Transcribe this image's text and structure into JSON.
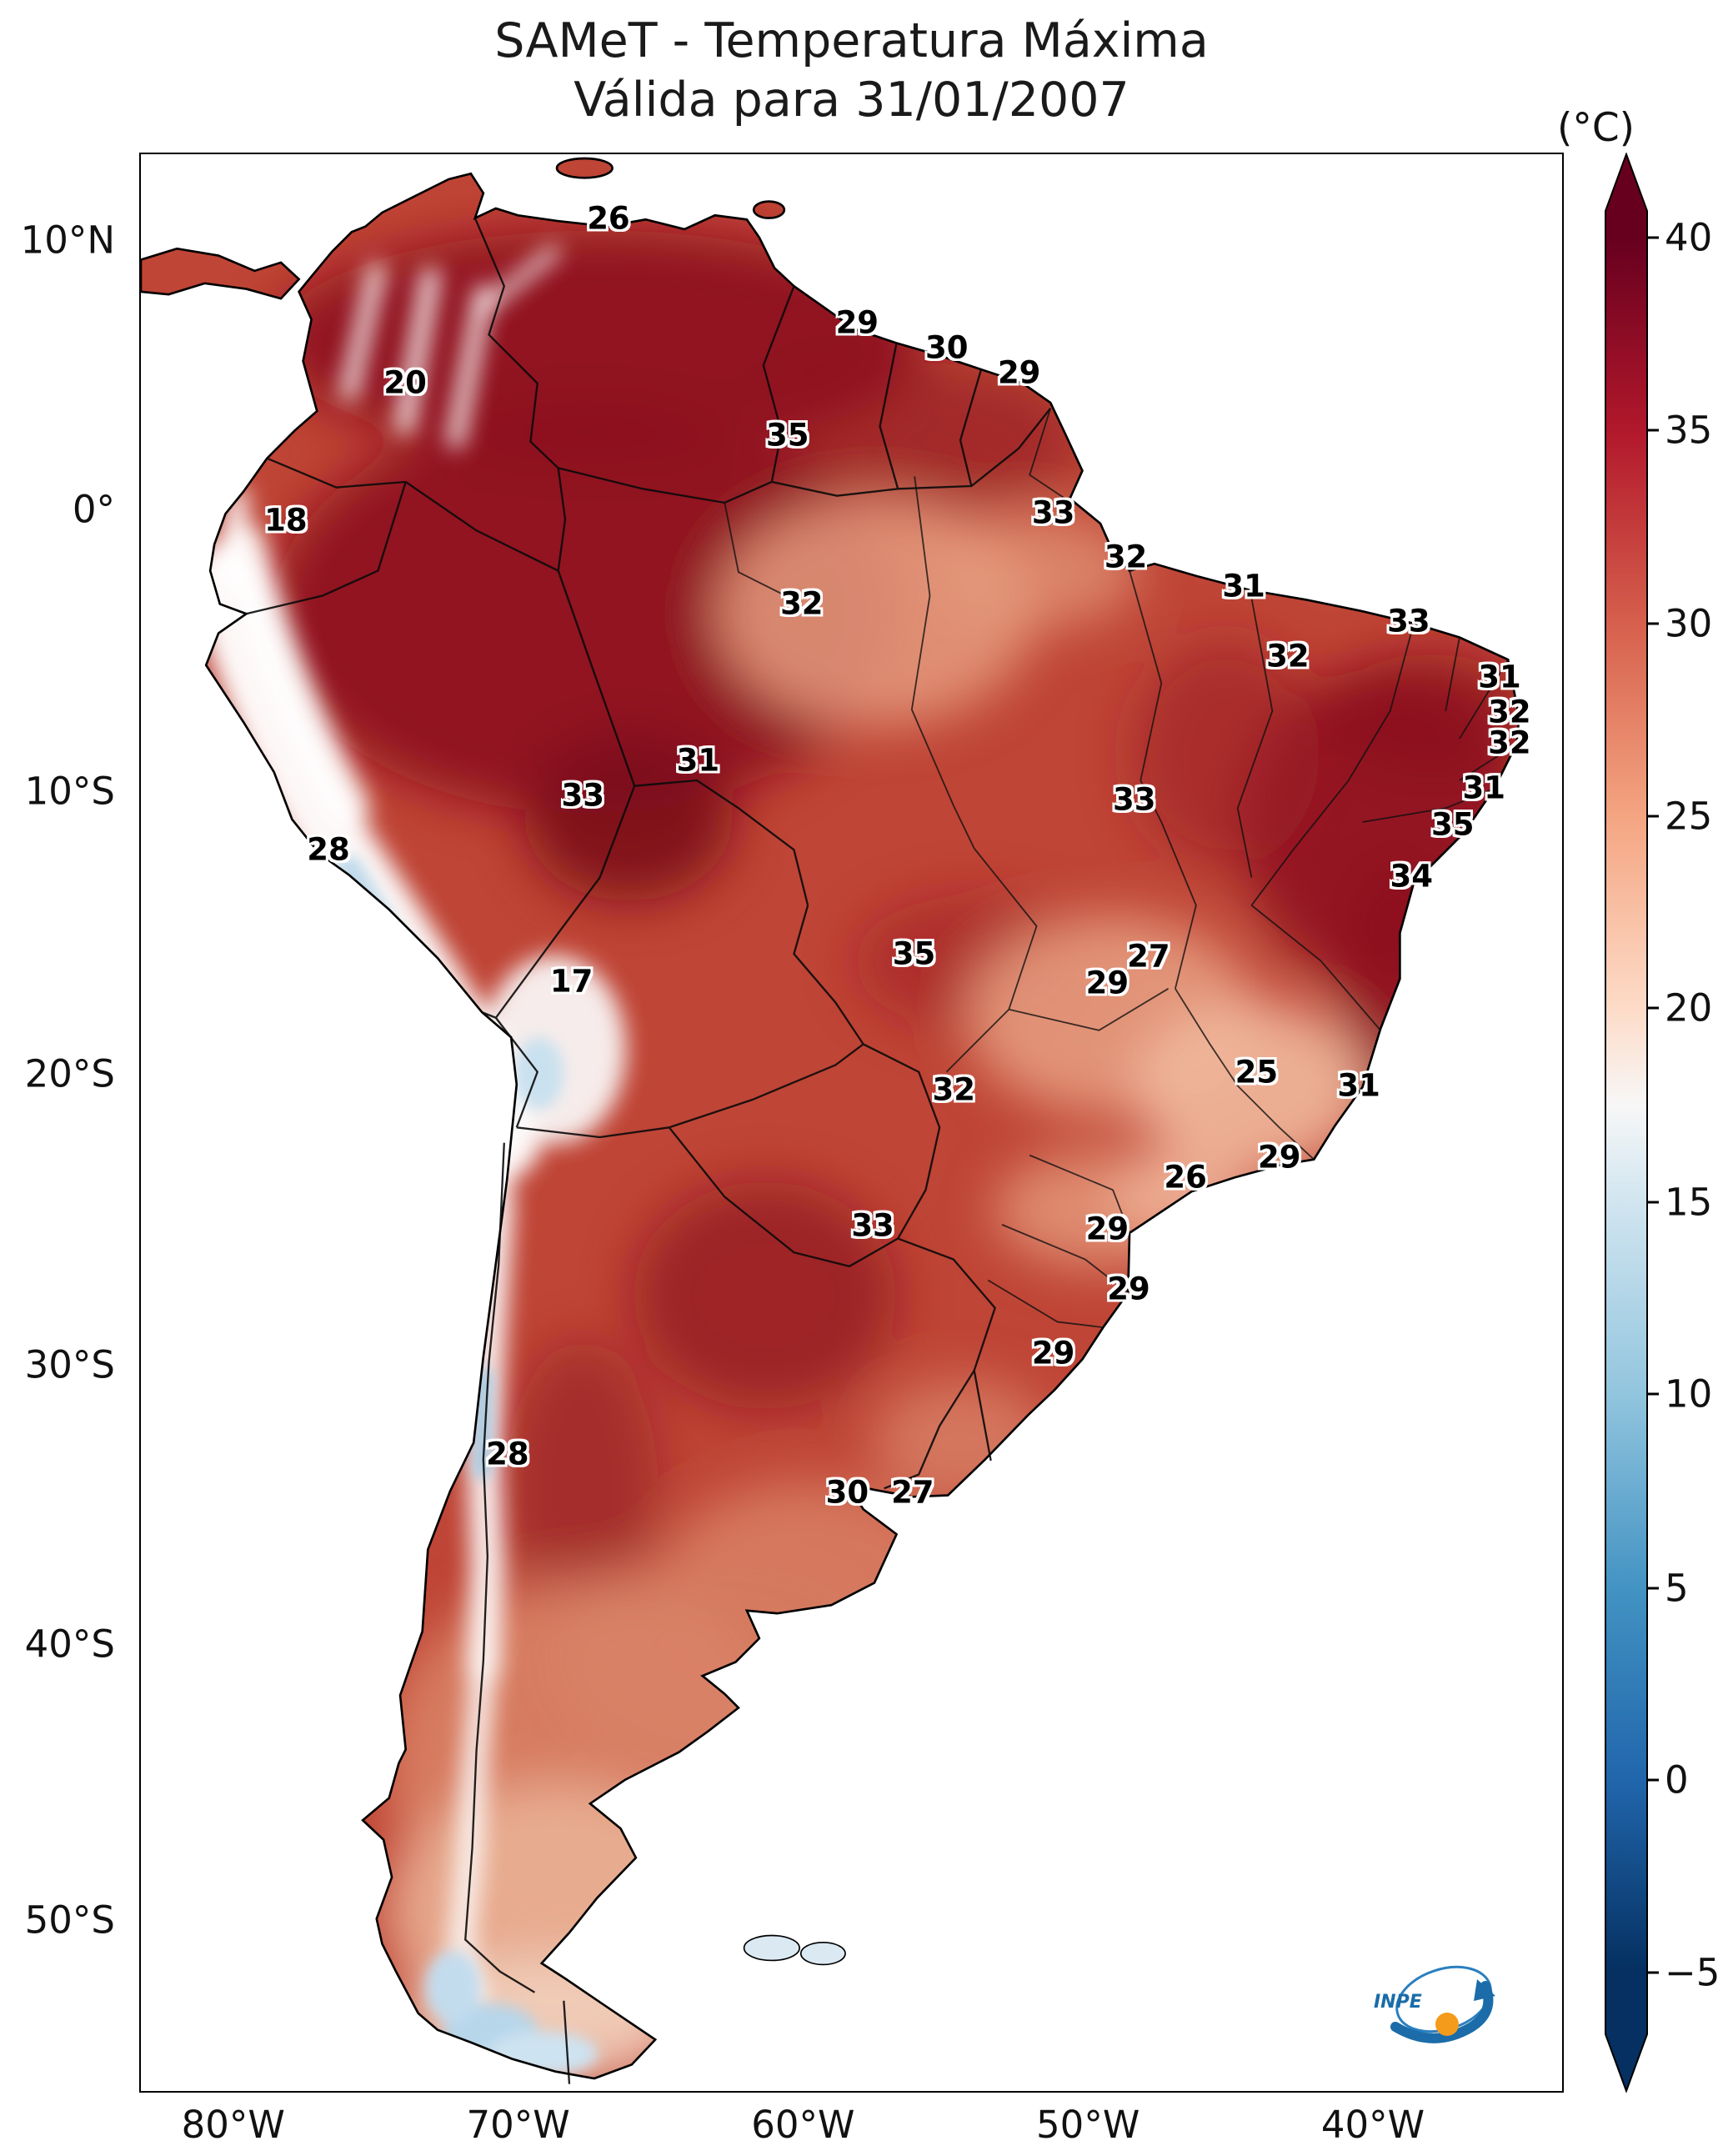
{
  "title": {
    "line1": "SAMeT - Temperatura Máxima",
    "line2": "Válida para 31/01/2007"
  },
  "colorbar": {
    "unit_label": "(°C)",
    "extend": "both",
    "ticks": [
      {
        "label": "40",
        "pct": 4.4
      },
      {
        "label": "35",
        "pct": 14.3
      },
      {
        "label": "30",
        "pct": 24.3
      },
      {
        "label": "25",
        "pct": 34.2
      },
      {
        "label": "20",
        "pct": 44.1
      },
      {
        "label": "15",
        "pct": 54.1
      },
      {
        "label": "10",
        "pct": 64.0
      },
      {
        "label": "5",
        "pct": 74.0
      },
      {
        "label": "0",
        "pct": 83.9
      },
      {
        "label": "−5",
        "pct": 93.8
      }
    ],
    "palette": [
      "#67001f",
      "#b2182b",
      "#d6604d",
      "#f4a582",
      "#fddbc7",
      "#f7f7f7",
      "#d1e5f0",
      "#92c5de",
      "#4393c3",
      "#2166ac",
      "#053061"
    ]
  },
  "axes": {
    "lat_ticks": [
      {
        "label": "10°N",
        "pct": 4.5
      },
      {
        "label": "0°",
        "pct": 18.4
      },
      {
        "label": "10°S",
        "pct": 32.9
      },
      {
        "label": "20°S",
        "pct": 47.5
      },
      {
        "label": "30°S",
        "pct": 62.5
      },
      {
        "label": "40°S",
        "pct": 76.9
      },
      {
        "label": "50°S",
        "pct": 91.1
      }
    ],
    "lon_ticks": [
      {
        "label": "80°W",
        "pct": 6.6
      },
      {
        "label": "70°W",
        "pct": 26.6
      },
      {
        "label": "60°W",
        "pct": 46.6
      },
      {
        "label": "50°W",
        "pct": 66.6
      },
      {
        "label": "40°W",
        "pct": 86.6
      }
    ]
  },
  "logo": {
    "text": "INPE"
  },
  "chart_data": {
    "type": "heatmap",
    "title": "SAMeT - Temperatura Máxima",
    "subtitle": "Válida para 31/01/2007",
    "region": "South America",
    "unit": "°C",
    "colorbar_ticks": [
      40,
      35,
      30,
      25,
      20,
      15,
      10,
      5,
      0,
      -5
    ],
    "colorbar_extend": "both",
    "lat_ticks": [
      "10°N",
      "0°",
      "10°S",
      "20°S",
      "30°S",
      "40°S",
      "50°S"
    ],
    "lon_ticks": [
      "80°W",
      "70°W",
      "60°W",
      "50°W",
      "40°W"
    ],
    "stations": [
      {
        "value": 26,
        "x_pct": 32.9,
        "y_pct": 3.3
      },
      {
        "value": 29,
        "x_pct": 50.4,
        "y_pct": 8.7
      },
      {
        "value": 30,
        "x_pct": 56.7,
        "y_pct": 10.0
      },
      {
        "value": 29,
        "x_pct": 61.8,
        "y_pct": 11.3
      },
      {
        "value": 20,
        "x_pct": 18.6,
        "y_pct": 11.8
      },
      {
        "value": 35,
        "x_pct": 45.5,
        "y_pct": 14.5
      },
      {
        "value": 18,
        "x_pct": 10.2,
        "y_pct": 18.9
      },
      {
        "value": 33,
        "x_pct": 64.2,
        "y_pct": 18.5
      },
      {
        "value": 32,
        "x_pct": 69.3,
        "y_pct": 20.8
      },
      {
        "value": 31,
        "x_pct": 77.6,
        "y_pct": 22.3
      },
      {
        "value": 32,
        "x_pct": 46.5,
        "y_pct": 23.2
      },
      {
        "value": 33,
        "x_pct": 89.2,
        "y_pct": 24.1
      },
      {
        "value": 32,
        "x_pct": 80.7,
        "y_pct": 25.9
      },
      {
        "value": 31,
        "x_pct": 95.6,
        "y_pct": 27.0
      },
      {
        "value": 32,
        "x_pct": 96.3,
        "y_pct": 28.8
      },
      {
        "value": 32,
        "x_pct": 96.3,
        "y_pct": 30.4
      },
      {
        "value": 31,
        "x_pct": 94.5,
        "y_pct": 32.7
      },
      {
        "value": 33,
        "x_pct": 69.9,
        "y_pct": 33.3
      },
      {
        "value": 31,
        "x_pct": 39.2,
        "y_pct": 31.3
      },
      {
        "value": 33,
        "x_pct": 31.1,
        "y_pct": 33.1
      },
      {
        "value": 35,
        "x_pct": 92.3,
        "y_pct": 34.6
      },
      {
        "value": 34,
        "x_pct": 89.4,
        "y_pct": 37.3
      },
      {
        "value": 28,
        "x_pct": 13.2,
        "y_pct": 35.9
      },
      {
        "value": 35,
        "x_pct": 54.4,
        "y_pct": 41.3
      },
      {
        "value": 27,
        "x_pct": 70.9,
        "y_pct": 41.4
      },
      {
        "value": 29,
        "x_pct": 68.0,
        "y_pct": 42.8
      },
      {
        "value": 17,
        "x_pct": 30.3,
        "y_pct": 42.7
      },
      {
        "value": 25,
        "x_pct": 78.5,
        "y_pct": 47.4
      },
      {
        "value": 31,
        "x_pct": 85.7,
        "y_pct": 48.1
      },
      {
        "value": 32,
        "x_pct": 57.2,
        "y_pct": 48.3
      },
      {
        "value": 29,
        "x_pct": 80.1,
        "y_pct": 51.8
      },
      {
        "value": 26,
        "x_pct": 73.5,
        "y_pct": 52.8
      },
      {
        "value": 33,
        "x_pct": 51.5,
        "y_pct": 55.3
      },
      {
        "value": 29,
        "x_pct": 68.0,
        "y_pct": 55.5
      },
      {
        "value": 29,
        "x_pct": 69.5,
        "y_pct": 58.6
      },
      {
        "value": 29,
        "x_pct": 64.2,
        "y_pct": 61.9
      },
      {
        "value": 28,
        "x_pct": 25.8,
        "y_pct": 67.1
      },
      {
        "value": 30,
        "x_pct": 49.7,
        "y_pct": 69.1
      },
      {
        "value": 27,
        "x_pct": 54.3,
        "y_pct": 69.1
      }
    ]
  }
}
